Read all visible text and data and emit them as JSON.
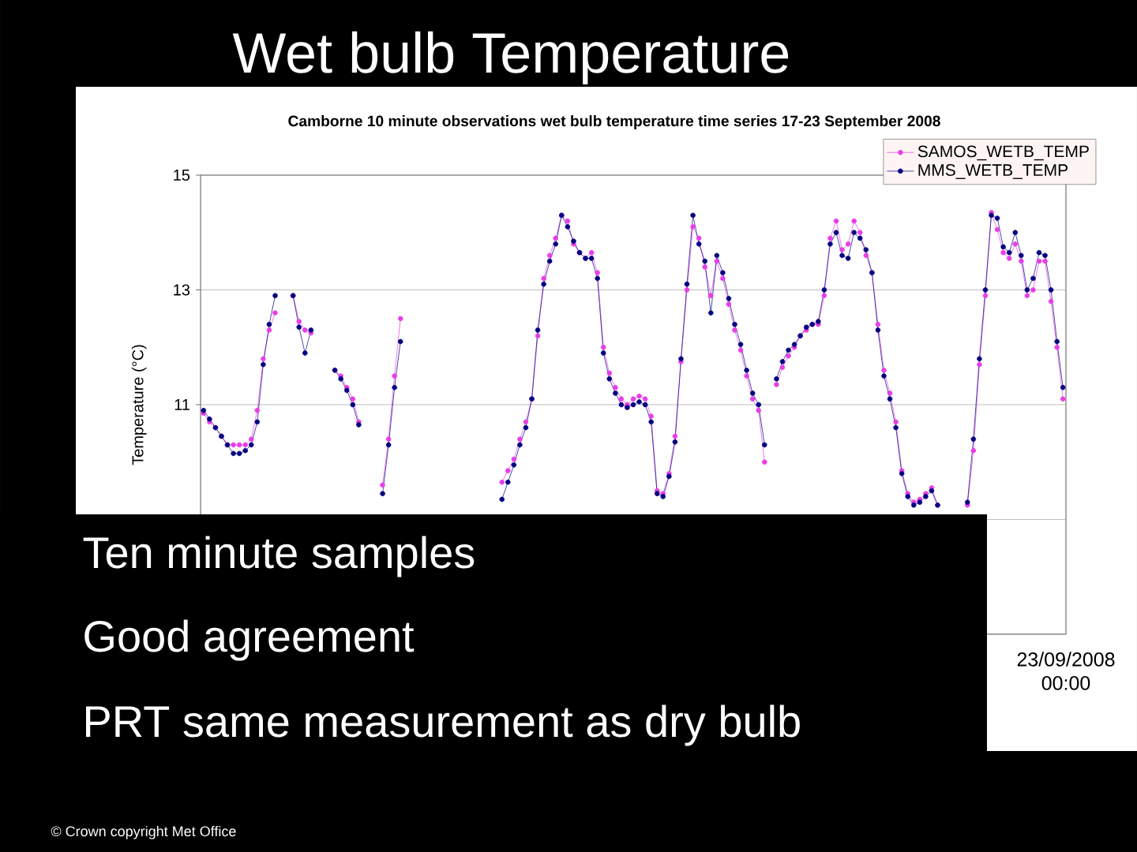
{
  "chart_data": {
    "type": "line",
    "title": "Wet bulb Temperature",
    "subtitle": "Camborne 10 minute observations wet bulb temperature time series 17-23 September 2008",
    "ylabel": "Temperature (°C)",
    "annotations": [
      "23/09/2008 00:00",
      "Ten minute samples",
      "Good agreement",
      "PRT same measurement as dry bulb",
      "© Crown copyright Met Office"
    ],
    "ylim": [
      7,
      15
    ],
    "yticks": [
      {
        "value": 9,
        "label": null
      },
      11,
      13,
      15
    ],
    "grid": "y",
    "legend": "top right",
    "marker": "circle",
    "categories": [
      null,
      null,
      null,
      null,
      null,
      null,
      null,
      null,
      null,
      null,
      null,
      null,
      null,
      null,
      null,
      null,
      null,
      null,
      null,
      null,
      null,
      null,
      null,
      null,
      null,
      null,
      null,
      null,
      null,
      null,
      null,
      null,
      null,
      null,
      null,
      null,
      null,
      null,
      null,
      null,
      null,
      null,
      null,
      null,
      null,
      null,
      null,
      null,
      null,
      null,
      null,
      null,
      null,
      null,
      null,
      null,
      null,
      null,
      null,
      null,
      null,
      null,
      null,
      null,
      null,
      null,
      null,
      null,
      null,
      null,
      null,
      null,
      null,
      null,
      null,
      null,
      null,
      null,
      null,
      null,
      null,
      null,
      null,
      null,
      null,
      null,
      null,
      null,
      null,
      null,
      null,
      null,
      null,
      null,
      null,
      null,
      null,
      null,
      null,
      null,
      null,
      null,
      null,
      null,
      null,
      null,
      null,
      null,
      null,
      null,
      null,
      null,
      null,
      null,
      null,
      null,
      null,
      null,
      null,
      null,
      null,
      null,
      null,
      null,
      null,
      null,
      null,
      null,
      null,
      null,
      null,
      null,
      null,
      null,
      null,
      null,
      null,
      null,
      null,
      null,
      null,
      null,
      null,
      null,
      null
    ],
    "series": [
      {
        "name": "SAMOS_WETB_TEMP",
        "color": "#e83ee8",
        "values": [
          10.85,
          10.7,
          10.6,
          10.45,
          10.3,
          10.3,
          10.3,
          10.3,
          10.4,
          10.9,
          11.8,
          12.3,
          12.6,
          null,
          null,
          12.9,
          12.45,
          12.3,
          12.25,
          null,
          null,
          null,
          11.6,
          11.5,
          11.3,
          11.1,
          10.7,
          null,
          null,
          null,
          9.6,
          10.4,
          11.5,
          12.5,
          null,
          null,
          null,
          null,
          null,
          null,
          null,
          null,
          null,
          null,
          null,
          null,
          null,
          null,
          null,
          null,
          9.65,
          9.85,
          10.05,
          10.4,
          10.7,
          11.1,
          12.2,
          13.2,
          13.6,
          13.9,
          14.3,
          14.2,
          13.8,
          13.65,
          13.55,
          13.65,
          13.3,
          12.0,
          11.55,
          11.3,
          11.1,
          11.0,
          11.1,
          11.15,
          11.1,
          10.8,
          9.5,
          9.45,
          9.8,
          10.45,
          11.75,
          13.0,
          14.1,
          13.9,
          13.4,
          12.9,
          13.5,
          13.2,
          12.75,
          12.3,
          11.95,
          11.5,
          11.1,
          10.9,
          10.0,
          null,
          11.35,
          11.65,
          11.85,
          12.0,
          12.2,
          12.3,
          12.4,
          12.4,
          12.9,
          13.9,
          14.2,
          13.7,
          13.8,
          14.2,
          14.0,
          13.6,
          13.3,
          12.4,
          11.6,
          11.2,
          10.7,
          9.85,
          9.45,
          9.3,
          9.35,
          9.45,
          9.55,
          9.25,
          null,
          null,
          null,
          null,
          9.25,
          10.2,
          11.7,
          12.9,
          14.35,
          14.05,
          13.65,
          13.55,
          13.8,
          13.5,
          12.9,
          13.0,
          13.5,
          13.5,
          12.8,
          12.0,
          11.1
        ]
      },
      {
        "name": "MMS_WETB_TEMP",
        "color": "#000080",
        "values": [
          10.9,
          10.75,
          10.6,
          10.45,
          10.3,
          10.15,
          10.15,
          10.2,
          10.3,
          10.7,
          11.7,
          12.4,
          12.9,
          null,
          null,
          12.9,
          12.35,
          11.9,
          12.3,
          null,
          null,
          null,
          11.6,
          11.45,
          11.25,
          11.0,
          10.65,
          null,
          null,
          null,
          9.45,
          10.3,
          11.3,
          12.1,
          null,
          null,
          null,
          null,
          null,
          null,
          null,
          null,
          null,
          null,
          null,
          null,
          null,
          null,
          null,
          null,
          9.35,
          9.65,
          9.95,
          10.3,
          10.6,
          11.1,
          12.3,
          13.1,
          13.5,
          13.8,
          14.3,
          14.1,
          13.85,
          13.65,
          13.55,
          13.55,
          13.2,
          11.9,
          11.45,
          11.2,
          11.0,
          10.95,
          11.0,
          11.05,
          11.0,
          10.7,
          9.45,
          9.4,
          9.75,
          10.35,
          11.8,
          13.1,
          14.3,
          13.8,
          13.5,
          12.6,
          13.6,
          13.3,
          12.85,
          12.4,
          12.05,
          11.6,
          11.2,
          11.0,
          10.3,
          null,
          11.45,
          11.75,
          11.95,
          12.05,
          12.2,
          12.35,
          12.4,
          12.45,
          13.0,
          13.8,
          14.0,
          13.6,
          13.55,
          14.0,
          13.9,
          13.7,
          13.3,
          12.3,
          11.5,
          11.1,
          10.6,
          9.8,
          9.4,
          9.25,
          9.3,
          9.4,
          9.5,
          9.25,
          null,
          null,
          null,
          null,
          9.3,
          10.4,
          11.8,
          13.0,
          14.3,
          14.25,
          13.75,
          13.65,
          14.0,
          13.6,
          13.0,
          13.2,
          13.65,
          13.6,
          13.0,
          12.1,
          11.3
        ]
      }
    ]
  }
}
